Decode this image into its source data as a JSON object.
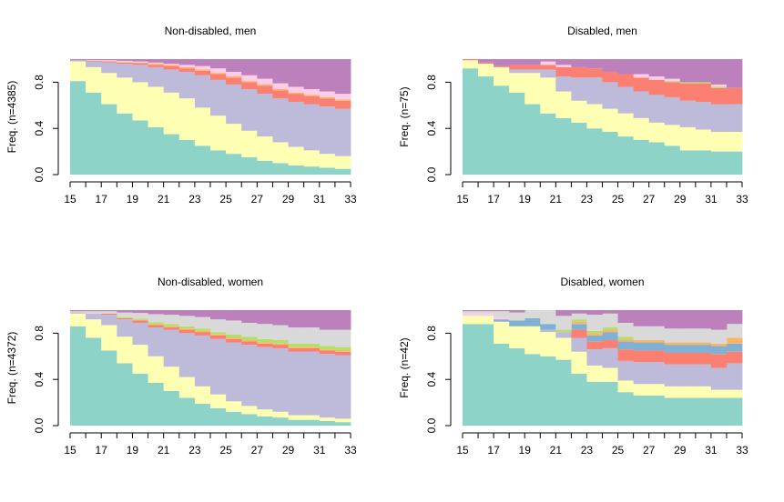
{
  "chart_data": [
    {
      "type": "step_area",
      "title": "Non-disabled, men",
      "y_label": "Freq. (n=4385)",
      "x": [
        15,
        16,
        17,
        18,
        19,
        20,
        21,
        22,
        23,
        24,
        25,
        26,
        27,
        28,
        29,
        30,
        31,
        32
      ],
      "xlim": [
        15,
        33
      ],
      "xticks": [
        15,
        17,
        19,
        21,
        23,
        25,
        27,
        29,
        31,
        33
      ],
      "xminor_ticks": [
        16,
        18,
        20,
        22,
        24,
        26,
        28,
        30,
        32
      ],
      "ylim": [
        0,
        1
      ],
      "yticks": [
        {
          "value": 0,
          "label": "0.0"
        },
        {
          "value": 0.4,
          "label": "0.4"
        },
        {
          "value": 0.8,
          "label": "0.8"
        }
      ],
      "series": [
        {
          "color": "#8DD3C7",
          "values": [
            0.81,
            0.71,
            0.61,
            0.53,
            0.47,
            0.41,
            0.35,
            0.3,
            0.25,
            0.21,
            0.18,
            0.15,
            0.12,
            0.1,
            0.08,
            0.07,
            0.06,
            0.05
          ]
        },
        {
          "color": "#FFFFB3",
          "values": [
            0.17,
            0.22,
            0.27,
            0.31,
            0.33,
            0.35,
            0.36,
            0.36,
            0.33,
            0.3,
            0.26,
            0.23,
            0.21,
            0.18,
            0.16,
            0.14,
            0.12,
            0.11
          ]
        },
        {
          "color": "#BEBADA",
          "values": [
            0.01,
            0.05,
            0.09,
            0.12,
            0.15,
            0.17,
            0.2,
            0.23,
            0.28,
            0.31,
            0.34,
            0.36,
            0.37,
            0.38,
            0.39,
            0.4,
            0.41,
            0.41
          ]
        },
        {
          "color": "#FB8072",
          "values": [
            0,
            0.005,
            0.01,
            0.01,
            0.015,
            0.02,
            0.03,
            0.03,
            0.04,
            0.05,
            0.06,
            0.06,
            0.07,
            0.07,
            0.07,
            0.07,
            0.07,
            0.07
          ]
        },
        {
          "color": "#FDB462",
          "values": [
            0,
            0,
            0,
            0.005,
            0.005,
            0.01,
            0.01,
            0.01,
            0.01,
            0.01,
            0.01,
            0.01,
            0.01,
            0.01,
            0.01,
            0.01,
            0.01,
            0.01
          ]
        },
        {
          "color": "#FCCDE5",
          "values": [
            0,
            0.005,
            0.01,
            0.01,
            0.01,
            0.01,
            0.01,
            0.02,
            0.03,
            0.04,
            0.04,
            0.05,
            0.05,
            0.05,
            0.05,
            0.05,
            0.05,
            0.05
          ]
        },
        {
          "color": "#BC80BD",
          "values": [
            0.01,
            0.01,
            0.01,
            0.015,
            0.02,
            0.03,
            0.04,
            0.05,
            0.06,
            0.08,
            0.11,
            0.14,
            0.17,
            0.21,
            0.24,
            0.26,
            0.28,
            0.3
          ]
        }
      ]
    },
    {
      "type": "step_area",
      "title": "Disabled, men",
      "y_label": "Freq. (n=75)",
      "x": [
        15,
        16,
        17,
        18,
        19,
        20,
        21,
        22,
        23,
        24,
        25,
        26,
        27,
        28,
        29,
        30,
        31,
        32
      ],
      "xlim": [
        15,
        33
      ],
      "xticks": [
        15,
        17,
        19,
        21,
        23,
        25,
        27,
        29,
        31,
        33
      ],
      "xminor_ticks": [
        16,
        18,
        20,
        22,
        24,
        26,
        28,
        30,
        32
      ],
      "ylim": [
        0,
        1
      ],
      "yticks": [
        {
          "value": 0,
          "label": "0.0"
        },
        {
          "value": 0.4,
          "label": "0.4"
        },
        {
          "value": 0.8,
          "label": "0.8"
        }
      ],
      "series": [
        {
          "color": "#8DD3C7",
          "values": [
            0.92,
            0.85,
            0.77,
            0.71,
            0.61,
            0.53,
            0.49,
            0.45,
            0.4,
            0.37,
            0.33,
            0.3,
            0.28,
            0.25,
            0.21,
            0.21,
            0.2,
            0.2
          ]
        },
        {
          "color": "#FFFFB3",
          "values": [
            0.07,
            0.11,
            0.16,
            0.17,
            0.27,
            0.31,
            0.23,
            0.19,
            0.21,
            0.2,
            0.2,
            0.19,
            0.17,
            0.18,
            0.2,
            0.18,
            0.17,
            0.17
          ]
        },
        {
          "color": "#BEBADA",
          "values": [
            0,
            0,
            0,
            0.03,
            0.03,
            0.07,
            0.13,
            0.2,
            0.23,
            0.23,
            0.23,
            0.23,
            0.24,
            0.24,
            0.23,
            0.24,
            0.24,
            0.24
          ]
        },
        {
          "color": "#FB8072",
          "values": [
            0.01,
            0.01,
            0.01,
            0.04,
            0.04,
            0.04,
            0.08,
            0.09,
            0.08,
            0.09,
            0.11,
            0.12,
            0.13,
            0.13,
            0.15,
            0.16,
            0.14,
            0.14
          ]
        },
        {
          "color": "#B3DE69",
          "values": [
            0,
            0,
            0,
            0,
            0,
            0,
            0,
            0,
            0,
            0,
            0,
            0,
            0,
            0.01,
            0.01,
            0.01,
            0.01,
            0
          ]
        },
        {
          "color": "#FCCDE5",
          "values": [
            0,
            0,
            0,
            0,
            0,
            0.03,
            0.02,
            0,
            0,
            0,
            0,
            0.03,
            0.03,
            0.02,
            0,
            0,
            0.02,
            0
          ]
        },
        {
          "color": "#BC80BD",
          "values": [
            0,
            0.03,
            0.06,
            0.05,
            0.05,
            0.02,
            0.05,
            0.07,
            0.08,
            0.11,
            0.13,
            0.13,
            0.15,
            0.17,
            0.2,
            0.2,
            0.22,
            0.25
          ]
        }
      ]
    },
    {
      "type": "step_area",
      "title": "Non-disabled, women",
      "y_label": "Freq. (n=4372)",
      "x": [
        15,
        16,
        17,
        18,
        19,
        20,
        21,
        22,
        23,
        24,
        25,
        26,
        27,
        28,
        29,
        30,
        31,
        32
      ],
      "xlim": [
        15,
        33
      ],
      "xticks": [
        15,
        17,
        19,
        21,
        23,
        25,
        27,
        29,
        31,
        33
      ],
      "xminor_ticks": [
        16,
        18,
        20,
        22,
        24,
        26,
        28,
        30,
        32
      ],
      "ylim": [
        0,
        1
      ],
      "yticks": [
        {
          "value": 0,
          "label": "0.0"
        },
        {
          "value": 0.4,
          "label": "0.4"
        },
        {
          "value": 0.8,
          "label": "0.8"
        }
      ],
      "series": [
        {
          "color": "#8DD3C7",
          "values": [
            0.86,
            0.76,
            0.65,
            0.54,
            0.45,
            0.37,
            0.3,
            0.24,
            0.19,
            0.15,
            0.12,
            0.1,
            0.08,
            0.07,
            0.05,
            0.05,
            0.04,
            0.03
          ]
        },
        {
          "color": "#FFFFB3",
          "values": [
            0.11,
            0.16,
            0.22,
            0.23,
            0.25,
            0.23,
            0.21,
            0.18,
            0.15,
            0.12,
            0.09,
            0.07,
            0.06,
            0.05,
            0.04,
            0.04,
            0.03,
            0.03
          ]
        },
        {
          "color": "#BEBADA",
          "values": [
            0.01,
            0.05,
            0.09,
            0.15,
            0.19,
            0.25,
            0.32,
            0.38,
            0.44,
            0.48,
            0.51,
            0.53,
            0.54,
            0.55,
            0.55,
            0.55,
            0.55,
            0.55
          ]
        },
        {
          "color": "#FB8072",
          "values": [
            0,
            0,
            0.01,
            0.01,
            0.02,
            0.02,
            0.02,
            0.03,
            0.03,
            0.03,
            0.03,
            0.03,
            0.03,
            0.03,
            0.03,
            0.03,
            0.03,
            0.03
          ]
        },
        {
          "color": "#FDB462",
          "values": [
            0,
            0,
            0,
            0,
            0.005,
            0.005,
            0.01,
            0.01,
            0.01,
            0.01,
            0.01,
            0.01,
            0.01,
            0.01,
            0.01,
            0.01,
            0.01,
            0.01
          ]
        },
        {
          "color": "#B3DE69",
          "values": [
            0,
            0,
            0,
            0.01,
            0.01,
            0.02,
            0.02,
            0.02,
            0.02,
            0.02,
            0.03,
            0.03,
            0.03,
            0.03,
            0.03,
            0.03,
            0.03,
            0.03
          ]
        },
        {
          "color": "#D9D9D9",
          "values": [
            0.01,
            0.02,
            0.02,
            0.04,
            0.05,
            0.07,
            0.08,
            0.09,
            0.1,
            0.11,
            0.12,
            0.12,
            0.13,
            0.13,
            0.14,
            0.14,
            0.14,
            0.15
          ]
        },
        {
          "color": "#BC80BD",
          "values": [
            0.01,
            0.01,
            0.01,
            0.02,
            0.025,
            0.035,
            0.04,
            0.05,
            0.06,
            0.08,
            0.09,
            0.11,
            0.12,
            0.13,
            0.15,
            0.15,
            0.17,
            0.17
          ]
        }
      ]
    },
    {
      "type": "step_area",
      "title": "Disabled, women",
      "y_label": "Freq. (n=42)",
      "x": [
        15,
        16,
        17,
        18,
        19,
        20,
        21,
        22,
        23,
        24,
        25,
        26,
        27,
        28,
        29,
        30,
        31,
        32
      ],
      "xlim": [
        15,
        33
      ],
      "xticks": [
        15,
        17,
        19,
        21,
        23,
        25,
        27,
        29,
        31,
        33
      ],
      "xminor_ticks": [
        16,
        18,
        20,
        22,
        24,
        26,
        28,
        30,
        32
      ],
      "ylim": [
        0,
        1
      ],
      "yticks": [
        {
          "value": 0,
          "label": "0.0"
        },
        {
          "value": 0.4,
          "label": "0.4"
        },
        {
          "value": 0.8,
          "label": "0.8"
        }
      ],
      "series": [
        {
          "color": "#8DD3C7",
          "values": [
            0.88,
            0.88,
            0.71,
            0.67,
            0.62,
            0.6,
            0.57,
            0.45,
            0.38,
            0.38,
            0.29,
            0.26,
            0.26,
            0.24,
            0.24,
            0.24,
            0.24,
            0.24
          ]
        },
        {
          "color": "#FFFFB3",
          "values": [
            0.07,
            0.07,
            0.19,
            0.19,
            0.24,
            0.21,
            0.19,
            0.19,
            0.14,
            0.12,
            0.1,
            0.1,
            0.1,
            0.1,
            0.1,
            0.1,
            0.07,
            0.07
          ]
        },
        {
          "color": "#BEBADA",
          "values": [
            0,
            0,
            0,
            0,
            0,
            0.02,
            0.05,
            0.12,
            0.14,
            0.17,
            0.17,
            0.19,
            0.19,
            0.19,
            0.19,
            0.19,
            0.19,
            0.23
          ]
        },
        {
          "color": "#FB8072",
          "values": [
            0,
            0,
            0,
            0,
            0,
            0,
            0,
            0.07,
            0.07,
            0.07,
            0.1,
            0.1,
            0.1,
            0.1,
            0.1,
            0.1,
            0.12,
            0.1
          ]
        },
        {
          "color": "#80B1D3",
          "values": [
            0,
            0,
            0.02,
            0.05,
            0.07,
            0.05,
            0,
            0.05,
            0.05,
            0.07,
            0.07,
            0.07,
            0.07,
            0.07,
            0.07,
            0.07,
            0.07,
            0.07
          ]
        },
        {
          "color": "#FDB462",
          "values": [
            0,
            0,
            0,
            0,
            0,
            0,
            0,
            0.02,
            0.02,
            0.02,
            0.02,
            0.02,
            0.02,
            0.02,
            0.02,
            0.02,
            0.02,
            0.05
          ]
        },
        {
          "color": "#B3DE69",
          "values": [
            0,
            0,
            0,
            0,
            0,
            0,
            0.02,
            0.02,
            0.02,
            0.02,
            0.02,
            0,
            0,
            0,
            0,
            0,
            0,
            0
          ]
        },
        {
          "color": "#FCCDE5",
          "values": [
            0.02,
            0.02,
            0.02,
            0,
            0,
            0,
            0,
            0,
            0,
            0,
            0,
            0,
            0,
            0,
            0,
            0,
            0,
            0
          ]
        },
        {
          "color": "#D9D9D9",
          "values": [
            0.02,
            0.02,
            0.05,
            0.07,
            0.07,
            0.12,
            0.12,
            0.05,
            0.14,
            0.12,
            0.12,
            0.12,
            0.12,
            0.12,
            0.12,
            0.12,
            0.12,
            0.12
          ]
        },
        {
          "color": "#BC80BD",
          "values": [
            0.01,
            0.01,
            0.01,
            0.02,
            0,
            0,
            0.05,
            0.03,
            0.04,
            0.03,
            0.11,
            0.14,
            0.14,
            0.16,
            0.16,
            0.16,
            0.17,
            0.12
          ]
        }
      ]
    }
  ]
}
